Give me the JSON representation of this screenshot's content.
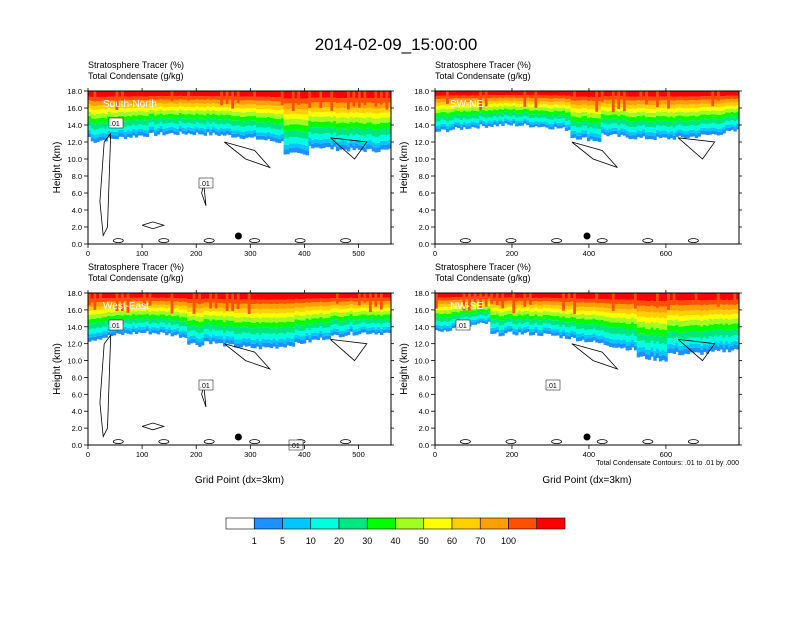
{
  "title": "2014-02-09_15:00:00",
  "colors": {
    "levels": [
      "#ffffff",
      "#1e90ff",
      "#00c8ff",
      "#00ffe0",
      "#00e680",
      "#00ff00",
      "#a0ff20",
      "#ffff00",
      "#ffd000",
      "#ffa000",
      "#ff5000",
      "#ff0000"
    ],
    "contour": "#000000",
    "marker": "#000000"
  },
  "chart_data": [
    {
      "type": "heatmap",
      "panel": "South-North",
      "title_line1": "Stratosphere Tracer   (%)",
      "title_line2": "Total Condensate   (g/kg)",
      "ylabel": "Height (km)",
      "xlabel": "",
      "xlim": [
        0,
        560
      ],
      "ylim": [
        0,
        18
      ],
      "xticks": [
        0,
        100,
        200,
        300,
        400,
        500
      ],
      "yticks": [
        "0.0",
        "2.0",
        "4.0",
        "6.0",
        "8.0",
        "10.0",
        "12.0",
        "14.0",
        "16.0",
        "18.0"
      ],
      "marker_x": 278,
      "contour_labels": [
        ".01",
        ".01"
      ]
    },
    {
      "type": "heatmap",
      "panel": "SW-NE",
      "title_line1": "Stratosphere Tracer   (%)",
      "title_line2": "Total Condensate   (g/kg)",
      "ylabel": "Height (km)",
      "xlabel": "",
      "xlim": [
        0,
        790
      ],
      "ylim": [
        0,
        18
      ],
      "xticks": [
        0,
        200,
        400,
        600
      ],
      "yticks": [
        "0.0",
        "2.0",
        "4.0",
        "6.0",
        "8.0",
        "10.0",
        "12.0",
        "14.0",
        "16.0",
        "18.0"
      ],
      "marker_x": 395,
      "contour_labels": []
    },
    {
      "type": "heatmap",
      "panel": "West-East",
      "title_line1": "Stratosphere Tracer   (%)",
      "title_line2": "Total Condensate   (g/kg)",
      "ylabel": "Height (km)",
      "xlabel": "Grid Point (dx=3km)",
      "xlim": [
        0,
        560
      ],
      "ylim": [
        0,
        18
      ],
      "xticks": [
        0,
        100,
        200,
        300,
        400,
        500
      ],
      "yticks": [
        "0.0",
        "2.0",
        "4.0",
        "6.0",
        "8.0",
        "10.0",
        "12.0",
        "14.0",
        "16.0",
        "18.0"
      ],
      "marker_x": 278,
      "contour_labels": [
        ".01",
        ".01",
        ".01"
      ]
    },
    {
      "type": "heatmap",
      "panel": "NW-SE",
      "title_line1": "Stratosphere Tracer   (%)",
      "title_line2": "Total Condensate   (g/kg)",
      "ylabel": "Height (km)",
      "xlabel": "Grid Point (dx=3km)",
      "xlim": [
        0,
        790
      ],
      "ylim": [
        0,
        18
      ],
      "xticks": [
        0,
        200,
        400,
        600
      ],
      "yticks": [
        "0.0",
        "2.0",
        "4.0",
        "6.0",
        "8.0",
        "10.0",
        "12.0",
        "14.0",
        "16.0",
        "18.0"
      ],
      "marker_x": 395,
      "contour_labels": [
        ".01",
        ".01"
      ],
      "footnote": "Total Condensate Contours: .01 to .01 by .000"
    }
  ],
  "colorbar": {
    "labels": [
      "1",
      "5",
      "10",
      "20",
      "30",
      "40",
      "50",
      "60",
      "70",
      "100"
    ]
  }
}
